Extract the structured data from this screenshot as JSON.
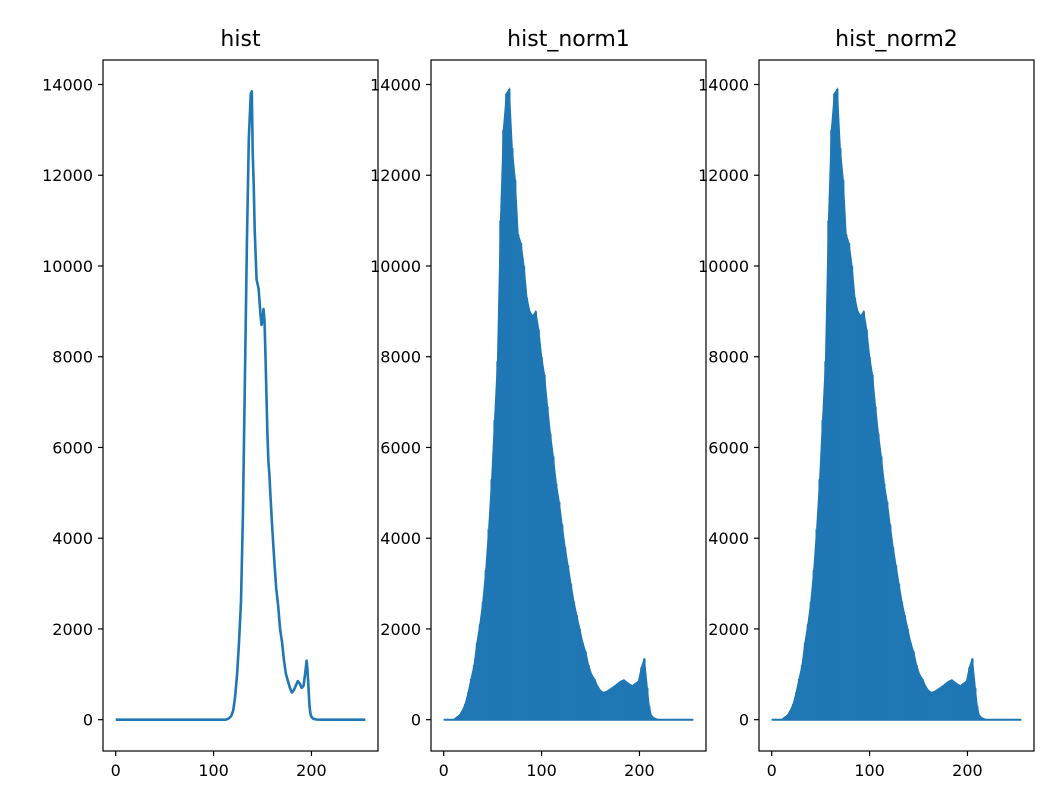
{
  "figure": {
    "background": "#ffffff"
  },
  "chart_data": [
    {
      "type": "line",
      "title": "hist",
      "xlabel": "",
      "ylabel": "",
      "xlim": [
        -13,
        268
      ],
      "ylim": [
        -690,
        14540
      ],
      "xticks": [
        0,
        100,
        200
      ],
      "yticks": [
        0,
        2000,
        4000,
        6000,
        8000,
        10000,
        12000,
        14000
      ],
      "color": "#1f77b4",
      "series": [
        {
          "x": [
            0,
            50,
            100,
            112,
            115,
            118,
            120,
            122,
            124,
            126,
            128,
            130,
            132,
            134,
            136,
            138,
            139,
            140,
            141,
            142,
            143,
            144,
            145,
            146,
            147,
            148,
            149,
            150,
            151,
            152,
            153,
            154,
            155,
            156,
            157,
            158,
            159,
            160,
            162,
            164,
            166,
            168,
            170,
            172,
            174,
            176,
            178,
            180,
            182,
            184,
            186,
            188,
            190,
            192,
            194,
            195,
            196,
            197,
            198,
            199,
            200,
            202,
            205,
            210,
            220,
            240,
            255
          ],
          "y": [
            0,
            0,
            0,
            0,
            20,
            80,
            200,
            500,
            1000,
            1700,
            2600,
            4500,
            7500,
            10500,
            12800,
            13800,
            13850,
            12500,
            11800,
            10800,
            10200,
            9700,
            9600,
            9500,
            9200,
            8900,
            8700,
            8800,
            9050,
            8800,
            8000,
            7200,
            6300,
            5700,
            5400,
            5000,
            4600,
            4200,
            3500,
            2900,
            2500,
            2000,
            1700,
            1300,
            1000,
            850,
            700,
            600,
            650,
            750,
            850,
            800,
            700,
            750,
            1100,
            1300,
            1100,
            700,
            300,
            120,
            60,
            20,
            5,
            0,
            0,
            0,
            0
          ]
        }
      ]
    },
    {
      "type": "bar",
      "title": "hist_norm1",
      "xlabel": "",
      "ylabel": "",
      "xlim": [
        -13,
        268
      ],
      "ylim": [
        -690,
        14540
      ],
      "xticks": [
        0,
        100,
        200
      ],
      "yticks": [
        0,
        2000,
        4000,
        6000,
        8000,
        10000,
        12000,
        14000
      ],
      "color": "#1f77b4",
      "series": [
        {
          "x": [
            0,
            10,
            13,
            16,
            19,
            22,
            25,
            28,
            31,
            34,
            37,
            40,
            43,
            46,
            49,
            52,
            55,
            58,
            61,
            64,
            67,
            70,
            73,
            76,
            79,
            82,
            85,
            88,
            91,
            94,
            97,
            100,
            103,
            106,
            109,
            112,
            115,
            118,
            121,
            124,
            127,
            130,
            133,
            136,
            139,
            142,
            145,
            148,
            151,
            154,
            157,
            160,
            163,
            166,
            169,
            172,
            175,
            178,
            181,
            184,
            187,
            190,
            193,
            196,
            199,
            202,
            205,
            208,
            210,
            212,
            215,
            218,
            222,
            230,
            255
          ],
          "y": [
            0,
            0,
            50,
            100,
            200,
            350,
            600,
            900,
            1200,
            1700,
            2100,
            2600,
            3300,
            4200,
            5300,
            6600,
            7900,
            11000,
            13000,
            13800,
            13900,
            12600,
            11900,
            10700,
            10500,
            10000,
            9300,
            9000,
            8900,
            9000,
            8600,
            8000,
            7600,
            6900,
            6300,
            5800,
            5200,
            4800,
            4300,
            3800,
            3400,
            3000,
            2600,
            2300,
            2000,
            1700,
            1500,
            1200,
            1000,
            900,
            750,
            650,
            600,
            620,
            660,
            700,
            750,
            800,
            850,
            880,
            830,
            780,
            750,
            800,
            850,
            1150,
            1350,
            700,
            300,
            100,
            40,
            10,
            0,
            0,
            0
          ]
        }
      ]
    },
    {
      "type": "bar",
      "title": "hist_norm2",
      "xlabel": "",
      "ylabel": "",
      "xlim": [
        -13,
        268
      ],
      "ylim": [
        -690,
        14540
      ],
      "xticks": [
        0,
        100,
        200
      ],
      "yticks": [
        0,
        2000,
        4000,
        6000,
        8000,
        10000,
        12000,
        14000
      ],
      "color": "#1f77b4",
      "series": [
        {
          "x": [
            0,
            10,
            13,
            16,
            19,
            22,
            25,
            28,
            31,
            34,
            37,
            40,
            43,
            46,
            49,
            52,
            55,
            58,
            61,
            64,
            67,
            70,
            73,
            76,
            79,
            82,
            85,
            88,
            91,
            94,
            97,
            100,
            103,
            106,
            109,
            112,
            115,
            118,
            121,
            124,
            127,
            130,
            133,
            136,
            139,
            142,
            145,
            148,
            151,
            154,
            157,
            160,
            163,
            166,
            169,
            172,
            175,
            178,
            181,
            184,
            187,
            190,
            193,
            196,
            199,
            202,
            205,
            208,
            210,
            212,
            215,
            218,
            222,
            230,
            255
          ],
          "y": [
            0,
            0,
            50,
            100,
            200,
            350,
            600,
            900,
            1200,
            1700,
            2100,
            2600,
            3300,
            4200,
            5300,
            6600,
            7900,
            11000,
            13000,
            13800,
            13900,
            12600,
            11900,
            10700,
            10500,
            10000,
            9300,
            9000,
            8900,
            9000,
            8600,
            8000,
            7600,
            6900,
            6300,
            5800,
            5200,
            4800,
            4300,
            3800,
            3400,
            3000,
            2600,
            2300,
            2000,
            1700,
            1500,
            1200,
            1000,
            900,
            750,
            650,
            600,
            620,
            660,
            700,
            750,
            800,
            850,
            880,
            830,
            780,
            750,
            800,
            850,
            1150,
            1350,
            700,
            300,
            100,
            40,
            10,
            0,
            0,
            0
          ]
        }
      ]
    }
  ]
}
